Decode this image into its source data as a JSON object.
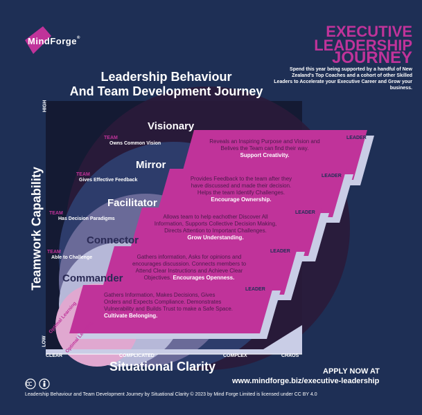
{
  "brand": {
    "logo_text": "MindForge",
    "logo_mark": "®"
  },
  "headline": {
    "line1": "EXECUTIVE",
    "line2": "LEADERSHIP",
    "line3": "JOURNEY"
  },
  "promo_text": "Spend this year being supported by a handful of New Zealand's Top Coaches and a cohort of other Skilled Leaders to Accelerate your Executive Career and Grow your business.",
  "title": {
    "line1": "Leadership Behaviour",
    "line2": "And Team Development Journey"
  },
  "axes": {
    "y_title": "Teamwork Capability",
    "y_high": "HIGH",
    "y_low": "LOW",
    "x_title": "Situational Clarity",
    "x_ticks": [
      "CLEAR",
      "COMPLICATED",
      "COMPLEX",
      "CHAOS"
    ]
  },
  "stages": [
    {
      "name": "Visionary",
      "team_tag": "TEAM",
      "team_desc": "Owns Common Vision",
      "leader_tag": "LEADER",
      "leader_lines": [
        "Reveals an Inspiring Purpose and Vision and",
        "Belives the Team can find their way."
      ],
      "encourage": "Support Creativity."
    },
    {
      "name": "Mirror",
      "team_tag": "TEAM",
      "team_desc": "Gives Effective Feedback",
      "leader_tag": "LEADER",
      "leader_lines": [
        "Provides Feedback to the team after they",
        "have discussed and made their decision.",
        "Helps the team Identify Challenges."
      ],
      "encourage": "Encourage Ownership."
    },
    {
      "name": "Facilitator",
      "team_tag": "TEAM",
      "team_desc": "Has Decision Paradigms",
      "leader_tag": "LEADER",
      "leader_lines": [
        "Allows team to help eachother Discover All",
        "Information, Supports Collective Decision Making,",
        "Directs Attention to Important Challenges."
      ],
      "encourage": "Grow Understanding."
    },
    {
      "name": "Connector",
      "team_tag": "TEAM",
      "team_desc": "Able to Challenge",
      "leader_tag": "LEADER",
      "leader_lines": [
        "Gathers information, Asks for opinions and",
        "encourages discussion. Connects members to",
        "Attend Clear Instructions and Achieve Clear",
        "Objectives."
      ],
      "encourage": "Encourages Openness."
    },
    {
      "name": "Commander",
      "team_tag": "",
      "team_desc": "",
      "leader_tag": "LEADER",
      "leader_lines": [
        "Gathers Information, Makes Decisions, Gives",
        "Orders and Expects Compliance. Demonstrates",
        "Vulnerability and Builds Trust to make a Safe Space."
      ],
      "encourage": "Cultivate Belonging."
    }
  ],
  "optimal_learning": [
    "Optimal Learning",
    "Optimal Learning"
  ],
  "cta": {
    "apply": "APPLY NOW AT",
    "url": "www.mindforge.biz/executive-leadership"
  },
  "license": "Leadership Behaviour and Team Development Journey by Situational Clarity © 2023 by Mind Forge Limited is licensed under CC BY 4.0",
  "colors": {
    "background": "#1e2f55",
    "magenta": "#c0339a",
    "lavender": "#c9cde6",
    "dark_plum": "#3a1f45"
  }
}
